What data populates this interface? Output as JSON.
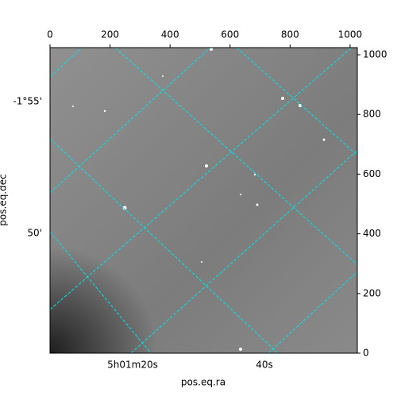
{
  "chart_data": {
    "type": "image",
    "xlim": [
      0,
      1024
    ],
    "ylim": [
      0,
      1024
    ],
    "xticks": [
      0,
      200,
      400,
      600,
      800,
      1000
    ],
    "yticks": [
      0,
      200,
      400,
      600,
      800,
      1000
    ],
    "ra_ticks": [
      "5h01m20s",
      "40s"
    ],
    "dec_ticks": [
      "-1°55'",
      "50'"
    ],
    "xlabel": "pos.eq.ra",
    "ylabel": "pos.eq.dec",
    "grid_color": "#00e5e5"
  }
}
